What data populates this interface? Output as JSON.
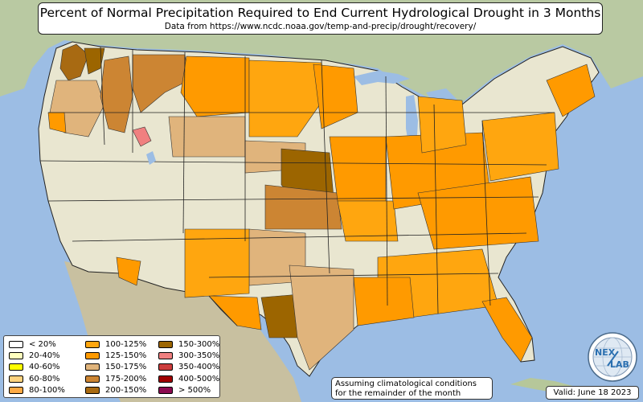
{
  "header": {
    "title": "Percent of Normal Precipitation Required to End Current Hydrological Drought in 3 Months",
    "subtitle": "Data from https://www.ncdc.noaa.gov/temp-and-precip/drought/recovery/"
  },
  "legend": {
    "items": [
      {
        "label": "< 20%",
        "color": "#ffffff"
      },
      {
        "label": "20-40%",
        "color": "#ffffbe"
      },
      {
        "label": "40-60%",
        "color": "#ffff00"
      },
      {
        "label": "60-80%",
        "color": "#ffd37f"
      },
      {
        "label": "80-100%",
        "color": "#ffaa45"
      },
      {
        "label": "100-125%",
        "color": "#ffa60f"
      },
      {
        "label": "125-150%",
        "color": "#ff9a00"
      },
      {
        "label": "150-175%",
        "color": "#e0b47c"
      },
      {
        "label": "175-200%",
        "color": "#cc8533"
      },
      {
        "label": "200-150%",
        "color": "#a86a12"
      },
      {
        "label": "150-300%",
        "color": "#9c6500"
      },
      {
        "label": "300-350%",
        "color": "#f08080"
      },
      {
        "label": "350-400%",
        "color": "#cc3c3c"
      },
      {
        "label": "400-500%",
        "color": "#a00000"
      },
      {
        "label": "> 500%",
        "color": "#8b0a50"
      }
    ]
  },
  "note": {
    "line1": "Assuming climatological conditions",
    "line2": "for the remainder of the month"
  },
  "valid": "Valid: June 18 2023",
  "logo": {
    "text_a": "NEX",
    "text_b": "LAB",
    "icon": "nexlab-globe-logo"
  }
}
